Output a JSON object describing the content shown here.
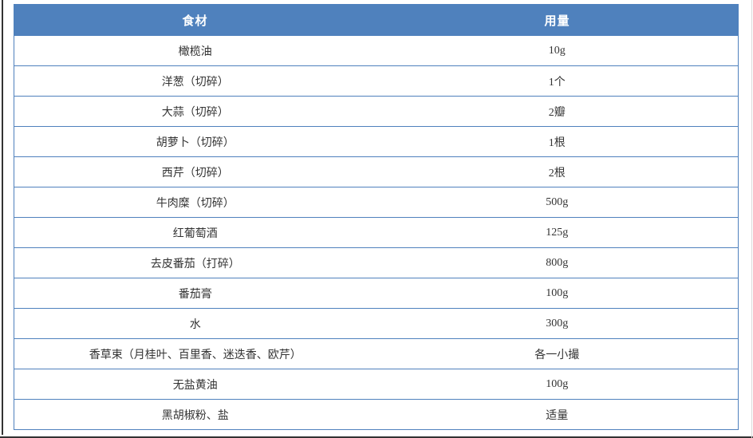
{
  "page": {
    "background": "#ffffff",
    "edge_dark_color": "#333333",
    "edge_light_color": "#d9d9d9"
  },
  "table": {
    "accent_color": "#4f81bd",
    "border_color": "#4f81bd",
    "header_text_color": "#ffffff",
    "text_color": "#333333",
    "columns": [
      "食材",
      "用量"
    ],
    "rows": [
      {
        "ingredient": "橄榄油",
        "amount": "10g"
      },
      {
        "ingredient": "洋葱（切碎）",
        "amount": "1个"
      },
      {
        "ingredient": "大蒜（切碎）",
        "amount": "2瓣"
      },
      {
        "ingredient": "胡萝卜（切碎）",
        "amount": "1根"
      },
      {
        "ingredient": "西芹（切碎）",
        "amount": "2根"
      },
      {
        "ingredient": "牛肉糜（切碎）",
        "amount": "500g"
      },
      {
        "ingredient": "红葡萄酒",
        "amount": "125g"
      },
      {
        "ingredient": "去皮番茄（打碎）",
        "amount": "800g"
      },
      {
        "ingredient": "番茄膏",
        "amount": "100g"
      },
      {
        "ingredient": "水",
        "amount": "300g"
      },
      {
        "ingredient": "香草束（月桂叶、百里香、迷迭香、欧芹）",
        "amount": "各一小撮"
      },
      {
        "ingredient": "无盐黄油",
        "amount": "100g"
      },
      {
        "ingredient": "黑胡椒粉、盐",
        "amount": "适量"
      }
    ]
  }
}
